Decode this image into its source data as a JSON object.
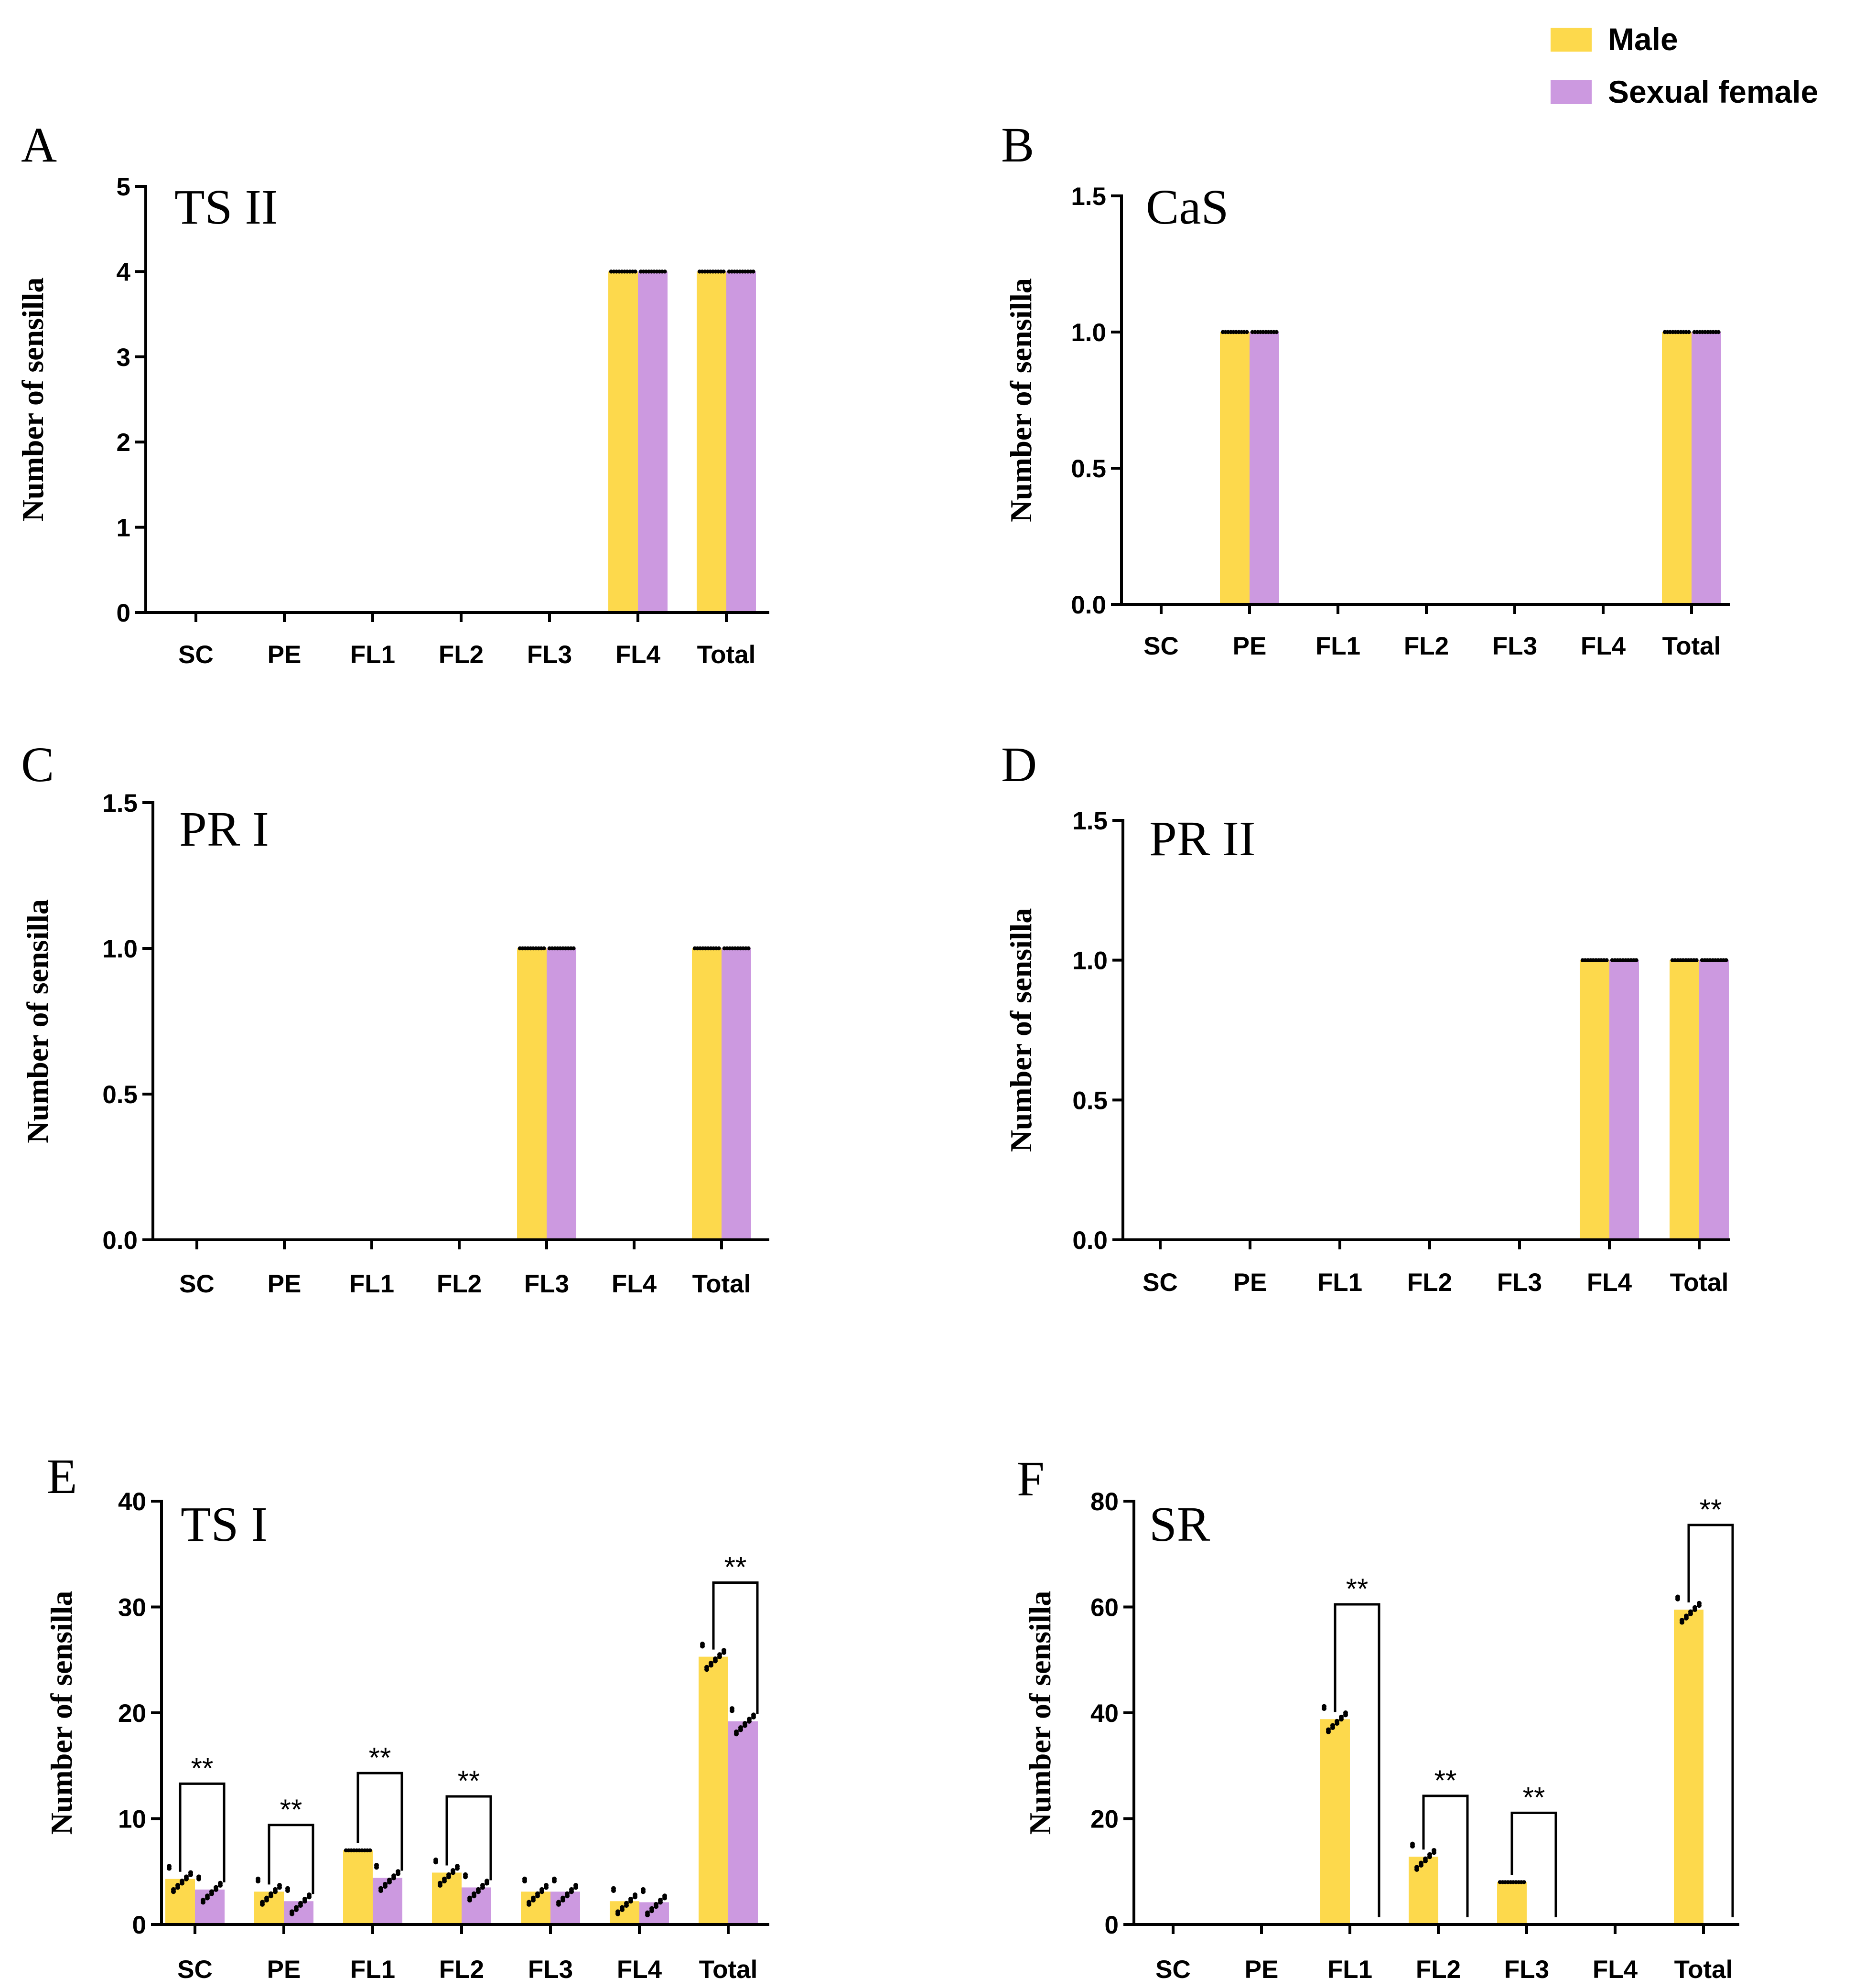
{
  "legend": {
    "items": [
      {
        "label": "Male",
        "color": "#FDD94C"
      },
      {
        "label": "Sexual female",
        "color": "#CC99E0"
      }
    ]
  },
  "chart_data": [
    {
      "panel": "A",
      "title": "TS II",
      "type": "bar",
      "ylabel": "Number of sensilla",
      "categories": [
        "SC",
        "PE",
        "FL1",
        "FL2",
        "FL3",
        "FL4",
        "Total"
      ],
      "ylim": [
        0,
        5
      ],
      "yticks": [
        "0",
        "1",
        "2",
        "3",
        "4",
        "5"
      ],
      "ytick_values": [
        0,
        1,
        2,
        3,
        4,
        5
      ],
      "series": [
        {
          "name": "Male",
          "values": [
            0,
            0,
            0,
            0,
            0,
            4,
            4
          ]
        },
        {
          "name": "Sexual female",
          "values": [
            0,
            0,
            0,
            0,
            0,
            4,
            4
          ]
        }
      ],
      "significance": []
    },
    {
      "panel": "B",
      "title": "CaS",
      "type": "bar",
      "ylabel": "Number of sensilla",
      "categories": [
        "SC",
        "PE",
        "FL1",
        "FL2",
        "FL3",
        "FL4",
        "Total"
      ],
      "ylim": [
        0,
        1.5
      ],
      "yticks": [
        "0.0",
        "0.5",
        "1.0",
        "1.5"
      ],
      "ytick_values": [
        0,
        0.5,
        1,
        1.5
      ],
      "series": [
        {
          "name": "Male",
          "values": [
            0,
            1,
            0,
            0,
            0,
            0,
            1
          ]
        },
        {
          "name": "Sexual female",
          "values": [
            0,
            1,
            0,
            0,
            0,
            0,
            1
          ]
        }
      ],
      "significance": []
    },
    {
      "panel": "C",
      "title": "PR I",
      "type": "bar",
      "ylabel": "Number of sensilla",
      "categories": [
        "SC",
        "PE",
        "FL1",
        "FL2",
        "FL3",
        "FL4",
        "Total"
      ],
      "ylim": [
        0,
        1.5
      ],
      "yticks": [
        "0.0",
        "0.5",
        "1.0",
        "1.5"
      ],
      "ytick_values": [
        0,
        0.5,
        1,
        1.5
      ],
      "series": [
        {
          "name": "Male",
          "values": [
            0,
            0,
            0,
            0,
            1,
            0,
            1
          ]
        },
        {
          "name": "Sexual female",
          "values": [
            0,
            0,
            0,
            0,
            1,
            0,
            1
          ]
        }
      ],
      "significance": []
    },
    {
      "panel": "D",
      "title": "PR II",
      "type": "bar",
      "ylabel": "Number of sensilla",
      "categories": [
        "SC",
        "PE",
        "FL1",
        "FL2",
        "FL3",
        "FL4",
        "Total"
      ],
      "ylim": [
        0,
        1.5
      ],
      "yticks": [
        "0.0",
        "0.5",
        "1.0",
        "1.5"
      ],
      "ytick_values": [
        0,
        0.5,
        1,
        1.5
      ],
      "series": [
        {
          "name": "Male",
          "values": [
            0,
            0,
            0,
            0,
            0,
            1,
            1
          ]
        },
        {
          "name": "Sexual female",
          "values": [
            0,
            0,
            0,
            0,
            0,
            1,
            1
          ]
        }
      ],
      "significance": []
    },
    {
      "panel": "E",
      "title": "TS I",
      "type": "bar",
      "ylabel": "Number of sensilla",
      "categories": [
        "SC",
        "PE",
        "FL1",
        "FL2",
        "FL3",
        "FL4",
        "Total"
      ],
      "ylim": [
        0,
        40
      ],
      "yticks": [
        "0",
        "10",
        "20",
        "30",
        "40"
      ],
      "ytick_values": [
        0,
        10,
        20,
        30,
        40
      ],
      "series": [
        {
          "name": "Male",
          "values": [
            4.3,
            3.1,
            7.0,
            4.9,
            3.1,
            2.2,
            25.3
          ]
        },
        {
          "name": "Sexual female",
          "values": [
            3.3,
            2.2,
            4.4,
            3.5,
            3.1,
            2.1,
            19.2
          ]
        }
      ],
      "significance": [
        {
          "category": "SC",
          "label": "**",
          "level": 13.3
        },
        {
          "category": "PE",
          "label": "**",
          "level": 9.4
        },
        {
          "category": "FL1",
          "label": "**",
          "level": 14.3
        },
        {
          "category": "FL2",
          "label": "**",
          "level": 12.1
        },
        {
          "category": "Total",
          "label": "**",
          "level": 32.3
        }
      ]
    },
    {
      "panel": "F",
      "title": "SR",
      "type": "bar",
      "ylabel": "Number of sensilla",
      "categories": [
        "SC",
        "PE",
        "FL1",
        "FL2",
        "FL3",
        "FL4",
        "Total"
      ],
      "ylim": [
        0,
        80
      ],
      "yticks": [
        "0",
        "20",
        "40",
        "60",
        "80"
      ],
      "ytick_values": [
        0,
        20,
        40,
        60,
        80
      ],
      "series": [
        {
          "name": "Male",
          "values": [
            0,
            0,
            38.8,
            12.8,
            8.0,
            0,
            59.5
          ]
        },
        {
          "name": "Sexual female",
          "values": [
            0,
            0,
            0,
            0,
            0,
            0,
            0
          ]
        }
      ],
      "significance": [
        {
          "category": "FL1",
          "label": "**",
          "level": 60.5
        },
        {
          "category": "FL2",
          "label": "**",
          "level": 24.3
        },
        {
          "category": "FL3",
          "label": "**",
          "level": 21.1
        },
        {
          "category": "Total",
          "label": "**",
          "level": 75.5
        }
      ]
    }
  ]
}
